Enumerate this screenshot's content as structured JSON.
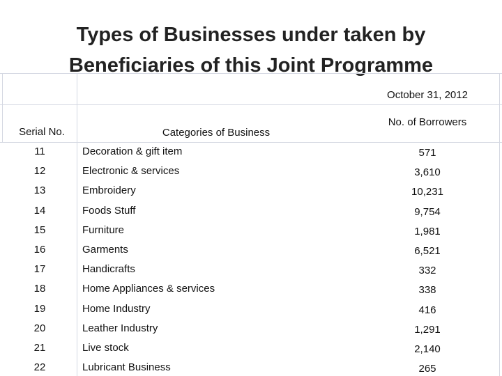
{
  "title": "Types of Businesses under taken by Beneficiaries of this Joint Programme",
  "table": {
    "date": "October 31, 2012",
    "columns": [
      "Serial No.",
      "Categories of Business",
      "No. of Borrowers"
    ],
    "rows": [
      [
        "11",
        "Decoration & gift item",
        "571"
      ],
      [
        "12",
        "Electronic & services",
        "3,610"
      ],
      [
        "13",
        "Embroidery",
        "10,231"
      ],
      [
        "14",
        "Foods Stuff",
        "9,754"
      ],
      [
        "15",
        "Furniture",
        "1,981"
      ],
      [
        "16",
        "Garments",
        "6,521"
      ],
      [
        "17",
        "Handicrafts",
        "332"
      ],
      [
        "18",
        "Home Appliances & services",
        "338"
      ],
      [
        "19",
        "Home Industry",
        "416"
      ],
      [
        "20",
        "Leather Industry",
        "1,291"
      ],
      [
        "21",
        "Live stock",
        "2,140"
      ],
      [
        "22",
        "Lubricant Business",
        "265"
      ]
    ]
  }
}
